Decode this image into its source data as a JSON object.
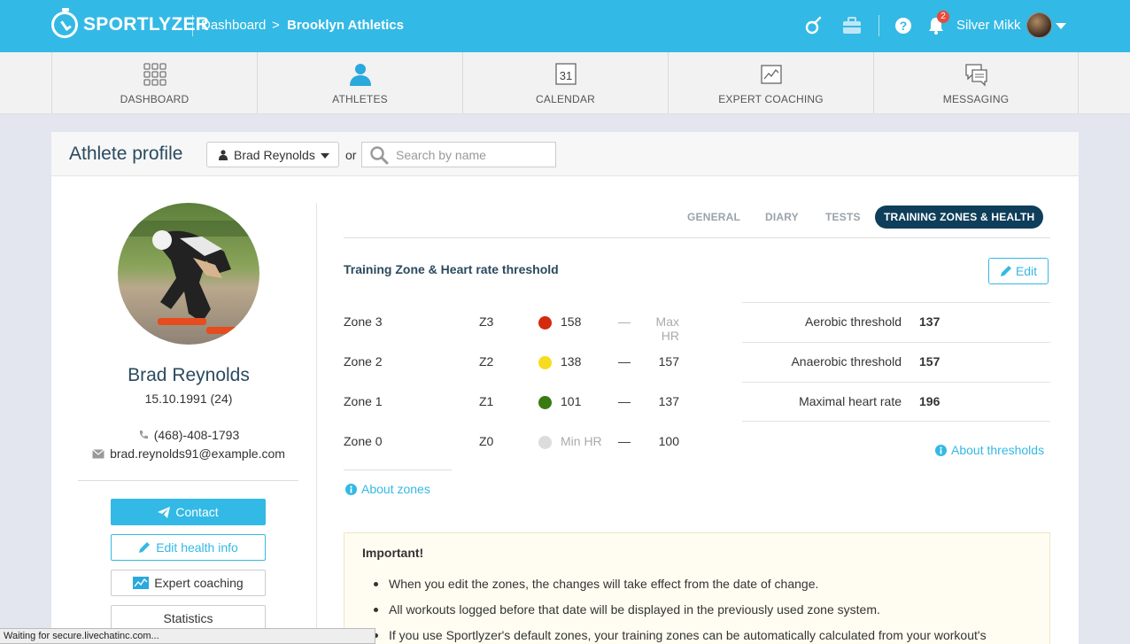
{
  "header": {
    "logo_text": "SPORTLYZER",
    "breadcrumb": [
      "Dashboard",
      "Brooklyn Athletics"
    ],
    "breadcrumb_separator": ">",
    "notifications_count": "2",
    "user_name": "Silver Mikk"
  },
  "nav": {
    "items": [
      {
        "label": "DASHBOARD",
        "icon": "grid-icon"
      },
      {
        "label": "ATHLETES",
        "icon": "person-icon"
      },
      {
        "label": "CALENDAR",
        "icon": "calendar-icon",
        "icon_text": "31"
      },
      {
        "label": "EXPERT COACHING",
        "icon": "chart-icon"
      },
      {
        "label": "MESSAGING",
        "icon": "chat-icon"
      }
    ],
    "active_index": 1
  },
  "profile_header": {
    "title": "Athlete profile",
    "selected_athlete": "Brad Reynolds",
    "or_label": "or",
    "search_placeholder": "Search by name"
  },
  "athlete": {
    "name": "Brad Reynolds",
    "dob": "15.10.1991 (24)",
    "phone": "(468)-408-1793",
    "email": "brad.reynolds91@example.com"
  },
  "actions": {
    "contact": "Contact",
    "edit_health": "Edit health info",
    "expert_coaching": "Expert coaching",
    "statistics": "Statistics"
  },
  "tabs": {
    "general": "GENERAL",
    "diary": "DIARY",
    "tests": "TESTS",
    "zones": "TRAINING ZONES & HEALTH",
    "active": "zones"
  },
  "zones_section": {
    "title": "Training Zone & Heart rate threshold",
    "edit_label": "Edit",
    "dash": "—",
    "zones": [
      {
        "name": "Zone 3",
        "code": "Z3",
        "color": "#d42a0e",
        "from": "158",
        "to": "Max HR"
      },
      {
        "name": "Zone 2",
        "code": "Z2",
        "color": "#f6dc1e",
        "from": "138",
        "to": "157"
      },
      {
        "name": "Zone 1",
        "code": "Z1",
        "color": "#3a7a12",
        "from": "101",
        "to": "137"
      },
      {
        "name": "Zone 0",
        "code": "Z0",
        "color": "#dcdcdc",
        "from": "Min HR",
        "to": "100"
      }
    ],
    "about_zones": "About zones",
    "thresholds": [
      {
        "label": "Aerobic threshold",
        "value": "137"
      },
      {
        "label": "Anaerobic threshold",
        "value": "157"
      },
      {
        "label": "Maximal heart rate",
        "value": "196"
      }
    ],
    "about_thresholds": "About thresholds"
  },
  "important": {
    "title": "Important!",
    "items": [
      "When you edit the zones, the changes will take effect from the date of change.",
      "All workouts logged before that date will be displayed in the previously used zone system.",
      "If you use Sportlyzer's default zones, your training zones can be automatically calculated from your workout's"
    ]
  },
  "status_bar": "Waiting for secure.livechatinc.com...",
  "colors": {
    "brand": "#33b9e5",
    "dark_navy": "#0e3e5a",
    "title_text": "#2a4a5f"
  }
}
